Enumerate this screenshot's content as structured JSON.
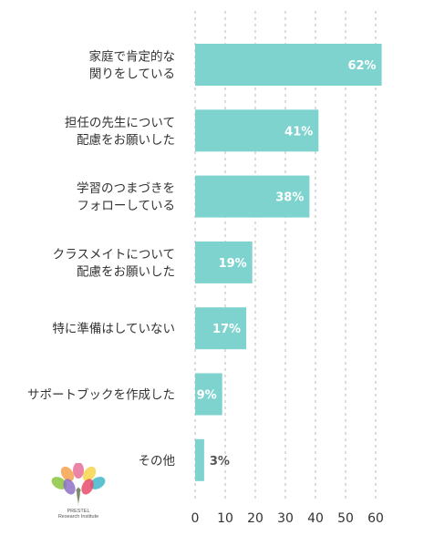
{
  "chart_data": {
    "type": "bar",
    "orientation": "horizontal",
    "categories": [
      [
        "家庭で肯定的な",
        "関りをしている"
      ],
      [
        "担任の先生について",
        "配慮をお願いした"
      ],
      [
        "学習のつまづきを",
        "フォローしている"
      ],
      [
        "クラスメイトについて",
        "配慮をお願いした"
      ],
      [
        "特に準備はしていない"
      ],
      [
        "サポートブックを作成した"
      ],
      [
        "その他"
      ]
    ],
    "values": [
      62,
      41,
      38,
      19,
      17,
      9,
      3
    ],
    "value_labels": [
      "62%",
      "41%",
      "38%",
      "19%",
      "17%",
      "9%",
      "3%"
    ],
    "xlim": [
      0,
      60
    ],
    "xticks": [
      0,
      10,
      20,
      30,
      40,
      50,
      60
    ],
    "grid": true,
    "colors": {
      "bar": "#7ed3cf",
      "label_inside": "#ffffff",
      "label_outside": "#555555"
    }
  },
  "logo": {
    "name": "PRESTEL",
    "subtitle": "Research Institute",
    "leaf_colors": [
      "#e86f9a",
      "#f4a24c",
      "#f6d54a",
      "#8cc63f",
      "#3fb6c9",
      "#8f6fc6",
      "#e84c6b"
    ]
  }
}
